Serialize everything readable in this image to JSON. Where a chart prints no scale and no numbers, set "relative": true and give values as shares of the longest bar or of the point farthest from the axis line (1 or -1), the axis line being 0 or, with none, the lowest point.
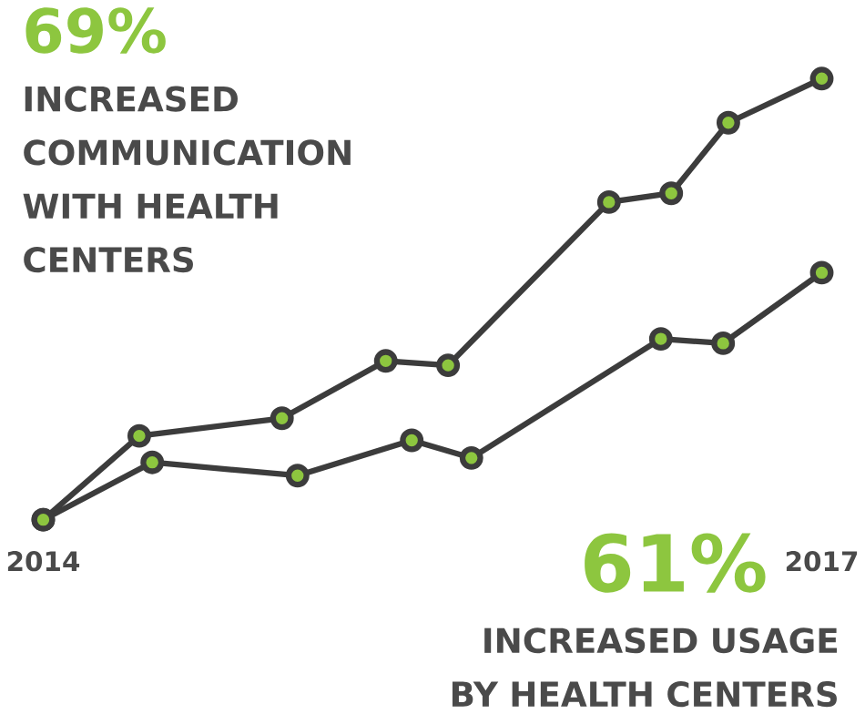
{
  "chart_data": {
    "type": "line",
    "relative": true,
    "xlim": [
      2014,
      2017
    ],
    "marker": "circle",
    "line_style": "solid",
    "xticks": [
      2014,
      2017
    ],
    "series": [
      {
        "color": "#3c3c3c",
        "x": [
          2014,
          2014.37,
          2014.92,
          2015.32,
          2015.56,
          2016.18,
          2016.42,
          2016.64,
          2017
        ],
        "values": [
          0,
          0.19,
          0.23,
          0.36,
          0.35,
          0.72,
          0.74,
          0.9,
          1
        ]
      },
      {
        "color": "#3c3c3c",
        "x": [
          2014,
          2014.42,
          2014.98,
          2015.42,
          2015.65,
          2016.38,
          2016.62,
          2017
        ],
        "values": [
          0,
          0.13,
          0.1,
          0.18,
          0.14,
          0.41,
          0.4,
          0.56
        ]
      }
    ],
    "annotations": [
      "69%",
      "INCREASED COMMUNICATION WITH HEALTH CENTERS",
      "61%",
      "INCREASED USAGE BY HEALTH CENTERS"
    ]
  }
}
